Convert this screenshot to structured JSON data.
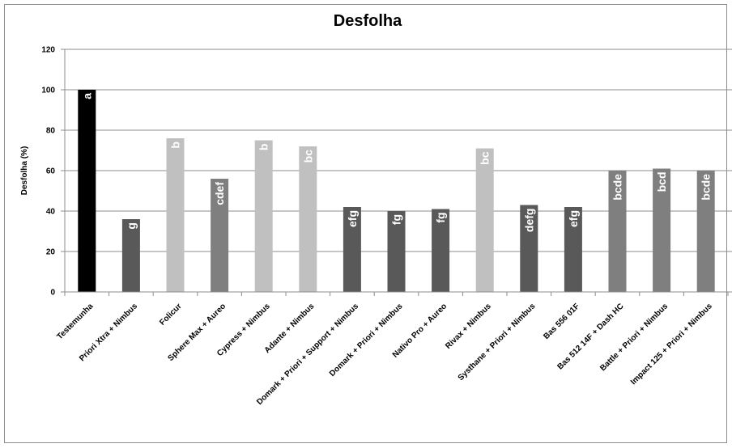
{
  "chart_data": {
    "type": "bar",
    "title": "Desfolha",
    "xlabel": "",
    "ylabel": "Desfolha (%)",
    "ylim": [
      0,
      120
    ],
    "yticks": [
      0,
      20,
      40,
      60,
      80,
      100,
      120
    ],
    "grid": true,
    "legend": "none",
    "categories": [
      "Testemunha",
      "Priori Xtra + Nimbus",
      "Folicur",
      "Sphere Max + Aureo",
      "Cypress + Nimbus",
      "Adante + Nimbus",
      "Domark + Priori + Support + Nimbus",
      "Domark + Priori + Nimbus",
      "Nativo Pro + Aureo",
      "Rivax + Nimbus",
      "Systhane + Priori + Nimbus",
      "Bas 556 01F",
      "Bas 512 14F + Dash HC",
      "Battle + Priori + Nimbus",
      "Impact 125 + Priori + Nimbus"
    ],
    "values": [
      100,
      36,
      76,
      56,
      75,
      72,
      42,
      40,
      41,
      71,
      43,
      42,
      60,
      61,
      60
    ],
    "letters": [
      "a",
      "g",
      "b",
      "cdef",
      "b",
      "bc",
      "efg",
      "fg",
      "fg",
      "bc",
      "defg",
      "efg",
      "bcde",
      "bcd",
      "bcde"
    ],
    "colors": [
      "#000000",
      "#595959",
      "#c0c0c0",
      "#7f7f7f",
      "#c0c0c0",
      "#c0c0c0",
      "#595959",
      "#595959",
      "#595959",
      "#c0c0c0",
      "#595959",
      "#595959",
      "#7f7f7f",
      "#7f7f7f",
      "#7f7f7f"
    ]
  }
}
